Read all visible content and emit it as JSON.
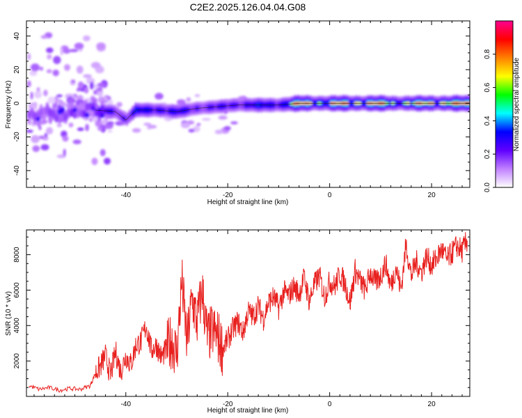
{
  "title": "C2E2.2025.126.04.04.G08",
  "colors": {
    "snr_line": "#e8201e",
    "frame": "#000000",
    "background": "#ffffff"
  },
  "chart_data": [
    {
      "type": "heatmap",
      "title": "C2E2.2025.126.04.04.G08",
      "xlabel": "Height of straight line (km)",
      "ylabel": "Frequency (Hz)",
      "xlim": [
        -59.5,
        27.5
      ],
      "ylim": [
        -50,
        49
      ],
      "xticks": [
        -40,
        -20,
        0,
        20
      ],
      "yticks": [
        -40,
        -20,
        0,
        20,
        40
      ],
      "colorbar": {
        "label": "Normalized spectral amplitude",
        "range": [
          0.0,
          1.0
        ],
        "ticks": [
          0.0,
          0.2,
          0.4,
          0.6,
          0.8
        ],
        "colormap": [
          "#ffffff",
          "#c080ff",
          "#6000ff",
          "#0000ff",
          "#00ffff",
          "#00ff00",
          "#ffff00",
          "#ff8000",
          "#ff0000",
          "#ff0090"
        ]
      },
      "ridge": [
        {
          "x": -58,
          "f": -7,
          "amp": 0.45
        },
        {
          "x": -54,
          "f": -6,
          "amp": 0.4
        },
        {
          "x": -50,
          "f": -5,
          "amp": 0.45
        },
        {
          "x": -46,
          "f": -4,
          "amp": 0.45
        },
        {
          "x": -42,
          "f": -5,
          "amp": 0.55
        },
        {
          "x": -40,
          "f": -10,
          "amp": 0.45
        },
        {
          "x": -38,
          "f": -4,
          "amp": 0.6
        },
        {
          "x": -34,
          "f": -4,
          "amp": 0.65
        },
        {
          "x": -30,
          "f": -5,
          "amp": 0.55
        },
        {
          "x": -26,
          "f": -3,
          "amp": 0.5
        },
        {
          "x": -22,
          "f": -2,
          "amp": 0.45
        },
        {
          "x": -18,
          "f": -1,
          "amp": 0.55
        },
        {
          "x": -14,
          "f": -1,
          "amp": 0.6
        },
        {
          "x": -10,
          "f": -1,
          "amp": 0.65
        },
        {
          "x": -6,
          "f": 0,
          "amp": 0.95
        },
        {
          "x": -2,
          "f": 0,
          "amp": 0.85
        },
        {
          "x": 1,
          "f": 0,
          "amp": 0.9
        },
        {
          "x": 5,
          "f": 0,
          "amp": 0.95
        },
        {
          "x": 9,
          "f": 0,
          "amp": 0.95
        },
        {
          "x": 13,
          "f": 0,
          "amp": 0.8
        },
        {
          "x": 17,
          "f": 0,
          "amp": 0.85
        },
        {
          "x": 21,
          "f": 0,
          "amp": 0.95
        },
        {
          "x": 25,
          "f": 0,
          "amp": 0.95
        }
      ]
    },
    {
      "type": "line",
      "xlabel": "Height of straight line (km)",
      "ylabel": "SNR (10 * v/v)",
      "xlim": [
        -59.5,
        27.5
      ],
      "ylim": [
        0,
        9400
      ],
      "xticks": [
        -40,
        -20,
        0,
        20
      ],
      "yticks": [
        2000,
        4000,
        6000,
        8000
      ],
      "series": [
        {
          "color": "#e8201e",
          "x": [
            -59,
            -57,
            -55,
            -53,
            -51,
            -49,
            -47,
            -46,
            -45,
            -44,
            -43,
            -42,
            -41,
            -40,
            -39,
            -38,
            -37,
            -36,
            -35,
            -34,
            -33,
            -32,
            -31,
            -30,
            -29,
            -28,
            -27,
            -26,
            -25,
            -24,
            -23,
            -22,
            -21,
            -20,
            -19,
            -18,
            -17,
            -16,
            -15,
            -14,
            -13,
            -12,
            -11,
            -10,
            -9,
            -8,
            -7,
            -6,
            -5,
            -4,
            -3,
            -2,
            -1,
            0,
            1,
            2,
            3,
            4,
            5,
            6,
            7,
            8,
            9,
            10,
            11,
            12,
            13,
            14,
            15,
            16,
            17,
            18,
            19,
            20,
            21,
            22,
            23,
            24,
            25,
            26,
            27
          ],
          "y": [
            600,
            400,
            500,
            350,
            450,
            400,
            600,
            1300,
            1700,
            2300,
            1200,
            2500,
            1400,
            2300,
            1800,
            2900,
            3100,
            4000,
            2600,
            2900,
            2200,
            2700,
            3200,
            2400,
            6500,
            3000,
            5500,
            4200,
            6000,
            3300,
            3700,
            3400,
            2700,
            3200,
            3800,
            4200,
            3600,
            4800,
            4500,
            5100,
            4400,
            5300,
            5600,
            5000,
            5900,
            5700,
            6200,
            5800,
            6700,
            5400,
            6300,
            6800,
            5600,
            6500,
            6200,
            6900,
            6400,
            5300,
            7100,
            6500,
            6000,
            7000,
            6400,
            6800,
            7500,
            6200,
            7300,
            6000,
            8600,
            6800,
            7600,
            7000,
            7900,
            7400,
            7800,
            8300,
            7700,
            8100,
            8500,
            8200,
            8800
          ]
        }
      ]
    }
  ]
}
